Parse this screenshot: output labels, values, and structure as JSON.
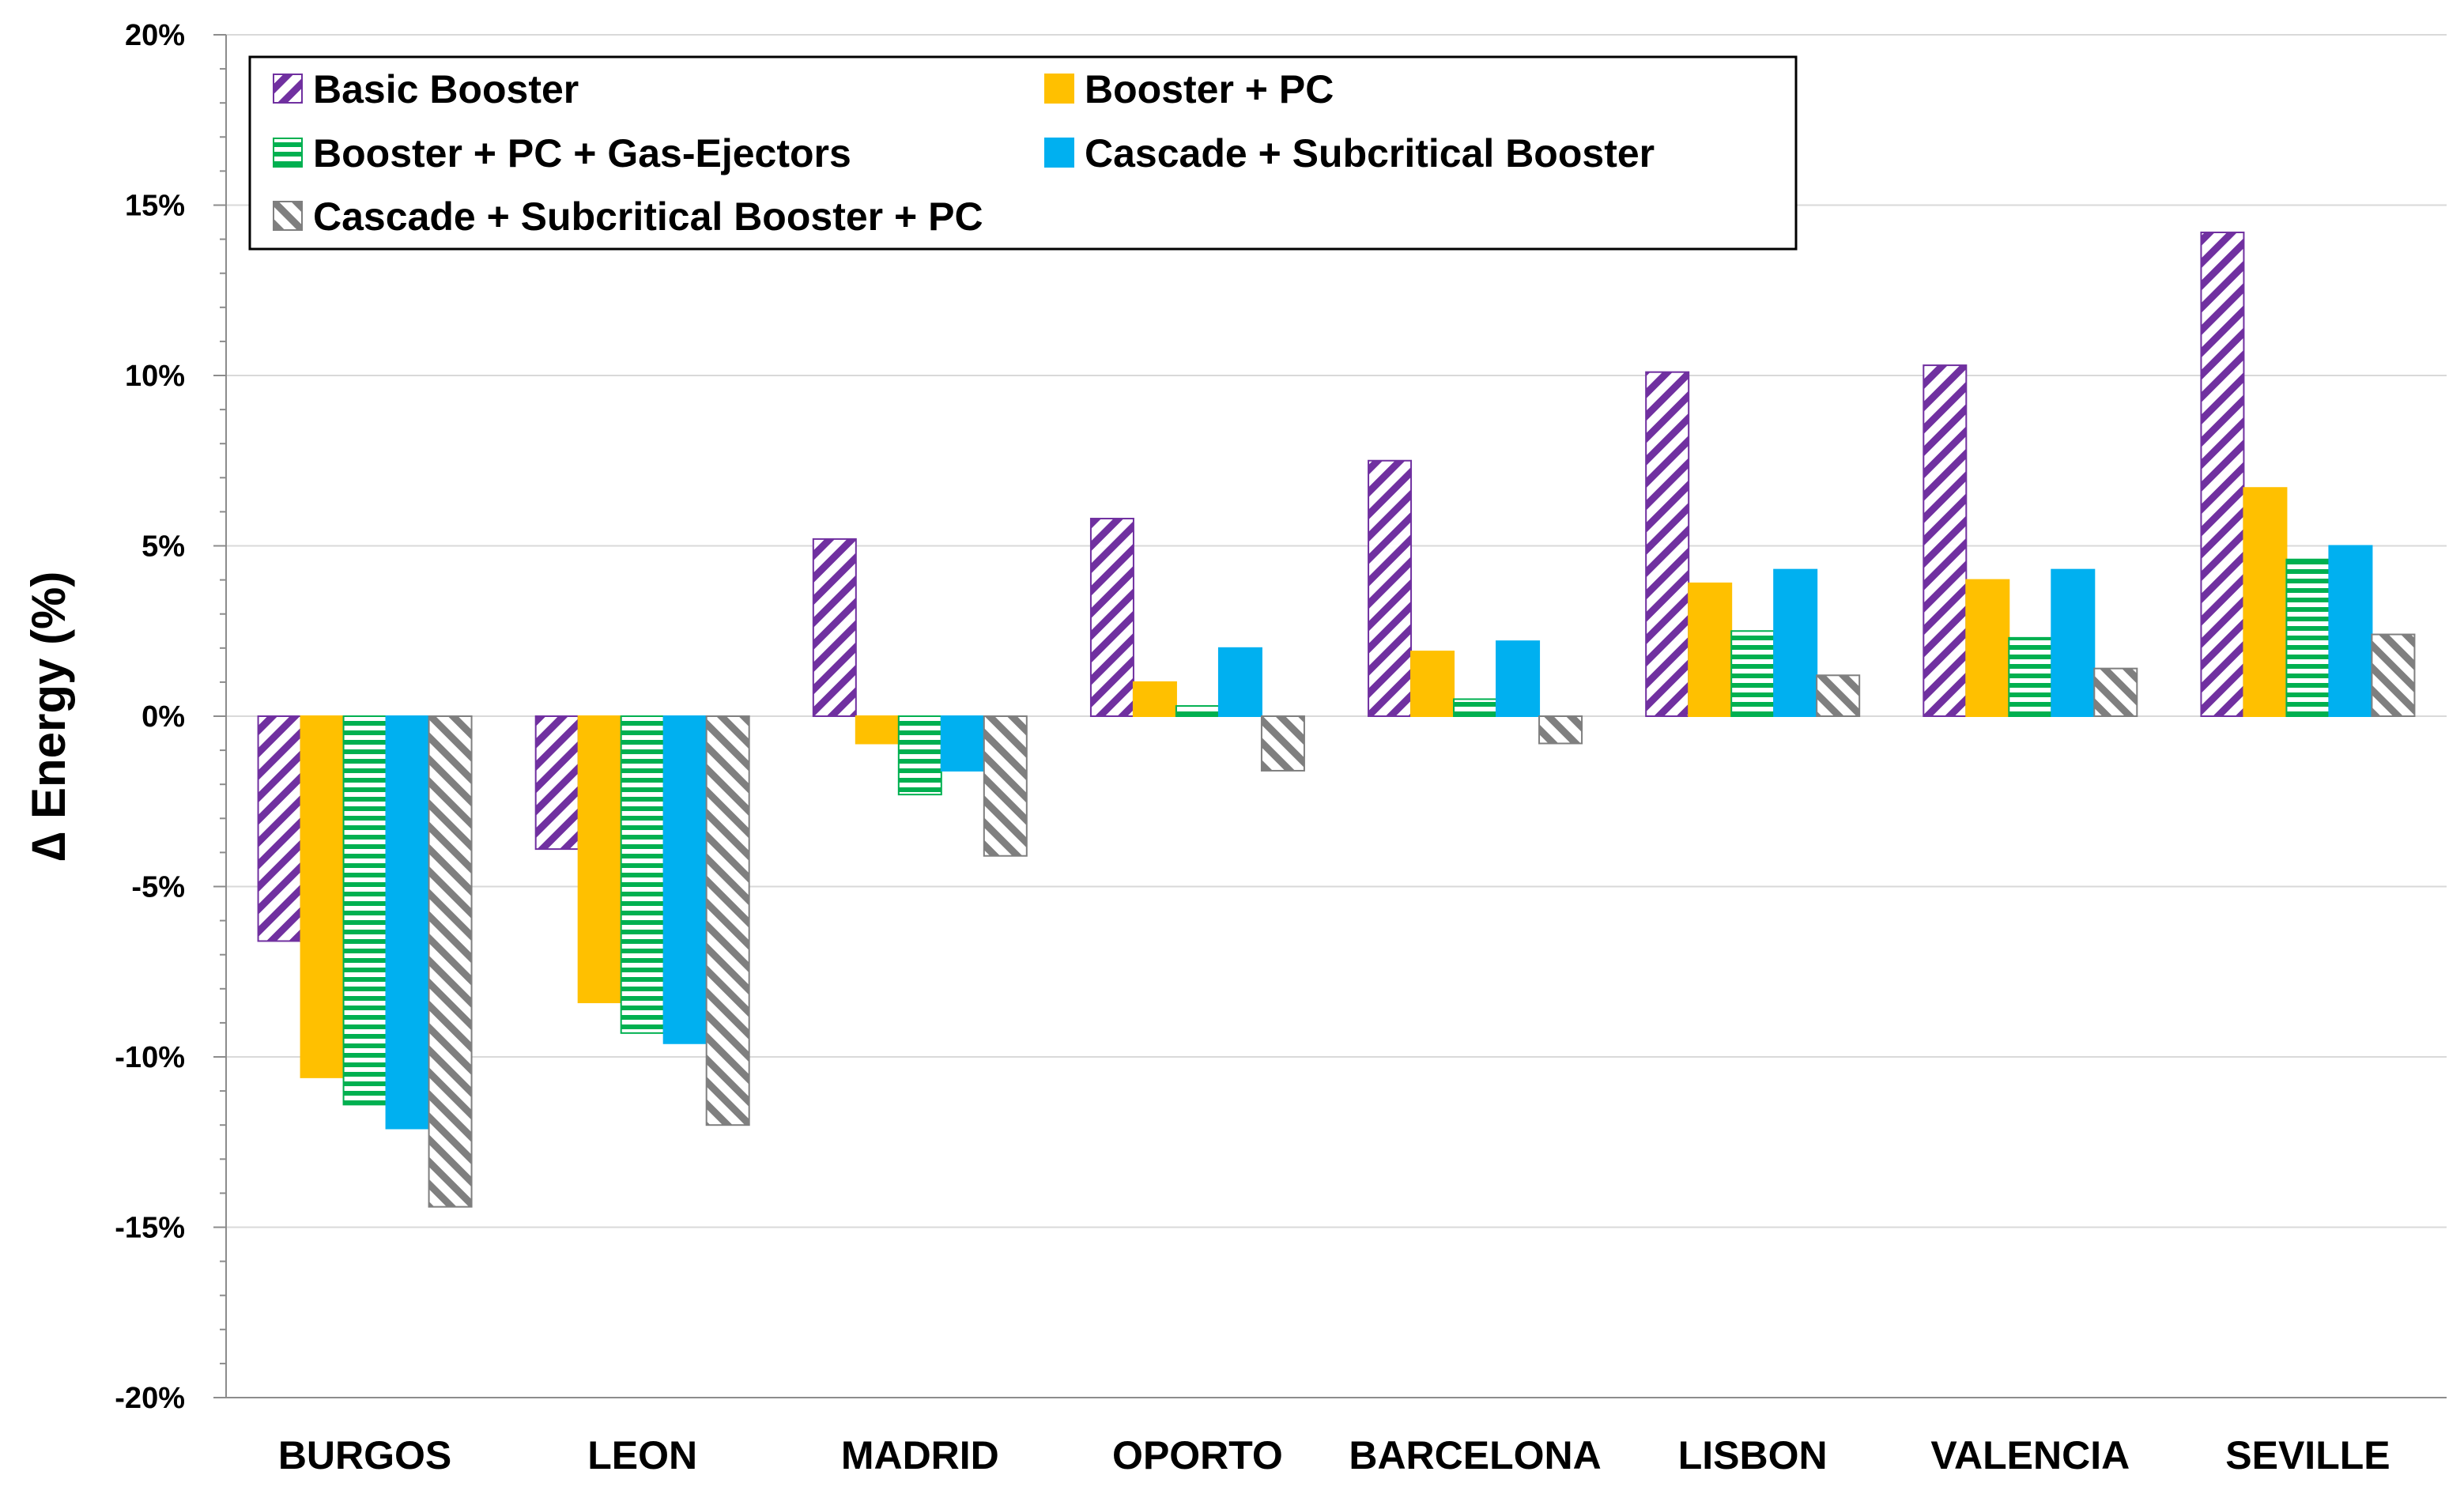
{
  "chart_data": {
    "type": "bar",
    "title": "",
    "xlabel": "",
    "ylabel": "∆ Energy (%)",
    "ylim": [
      -20,
      20
    ],
    "yticks": [
      -20,
      -15,
      -10,
      -5,
      0,
      5,
      10,
      15,
      20
    ],
    "ytick_labels": [
      "-20%",
      "-15%",
      "-10%",
      "-5%",
      "0%",
      "5%",
      "10%",
      "15%",
      "20%"
    ],
    "grid": true,
    "legend_position": "top-left",
    "categories": [
      "BURGOS",
      "LEON",
      "MADRID",
      "OPORTO",
      "BARCELONA",
      "LISBON",
      "VALENCIA",
      "SEVILLE"
    ],
    "series": [
      {
        "name": "Basic Booster",
        "color": "#7030A0",
        "pattern": "diagonal",
        "values": [
          -6.6,
          -3.9,
          5.2,
          5.8,
          7.5,
          10.1,
          10.3,
          14.2
        ]
      },
      {
        "name": "Booster + PC",
        "color": "#FFC000",
        "pattern": "solid",
        "values": [
          -10.6,
          -8.4,
          -0.8,
          1.0,
          1.9,
          3.9,
          4.0,
          6.7
        ]
      },
      {
        "name": "Booster + PC + Gas-Ejectors",
        "color": "#00B050",
        "pattern": "horizontal",
        "values": [
          -11.4,
          -9.3,
          -2.3,
          0.3,
          0.5,
          2.5,
          2.3,
          4.6
        ]
      },
      {
        "name": "Cascade + Subcritical Booster",
        "color": "#00B0F0",
        "pattern": "solid",
        "values": [
          -12.1,
          -9.6,
          -1.6,
          2.0,
          2.2,
          4.3,
          4.3,
          5.0
        ]
      },
      {
        "name": "Cascade + Subcritical Booster + PC",
        "color": "#7F7F7F",
        "pattern": "diagonal-back",
        "values": [
          -14.4,
          -12.0,
          -4.1,
          -1.6,
          -0.8,
          1.2,
          1.4,
          2.4
        ]
      }
    ]
  }
}
